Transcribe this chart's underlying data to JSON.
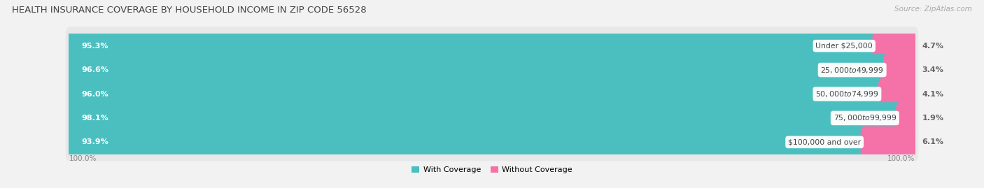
{
  "title": "HEALTH INSURANCE COVERAGE BY HOUSEHOLD INCOME IN ZIP CODE 56528",
  "source": "Source: ZipAtlas.com",
  "categories": [
    "Under $25,000",
    "$25,000 to $49,999",
    "$50,000 to $74,999",
    "$75,000 to $99,999",
    "$100,000 and over"
  ],
  "with_coverage": [
    95.3,
    96.6,
    96.0,
    98.1,
    93.9
  ],
  "without_coverage": [
    4.7,
    3.4,
    4.1,
    1.9,
    6.1
  ],
  "color_with": "#4bbfc0",
  "color_without": "#f472a8",
  "bg_color": "#f2f2f2",
  "bar_bg": "#e0e0e0",
  "row_bg": "#e8e8e8",
  "title_fontsize": 9.5,
  "label_fontsize": 8.0,
  "cat_fontsize": 7.8,
  "tick_fontsize": 7.5,
  "legend_fontsize": 8.0,
  "source_fontsize": 7.5
}
